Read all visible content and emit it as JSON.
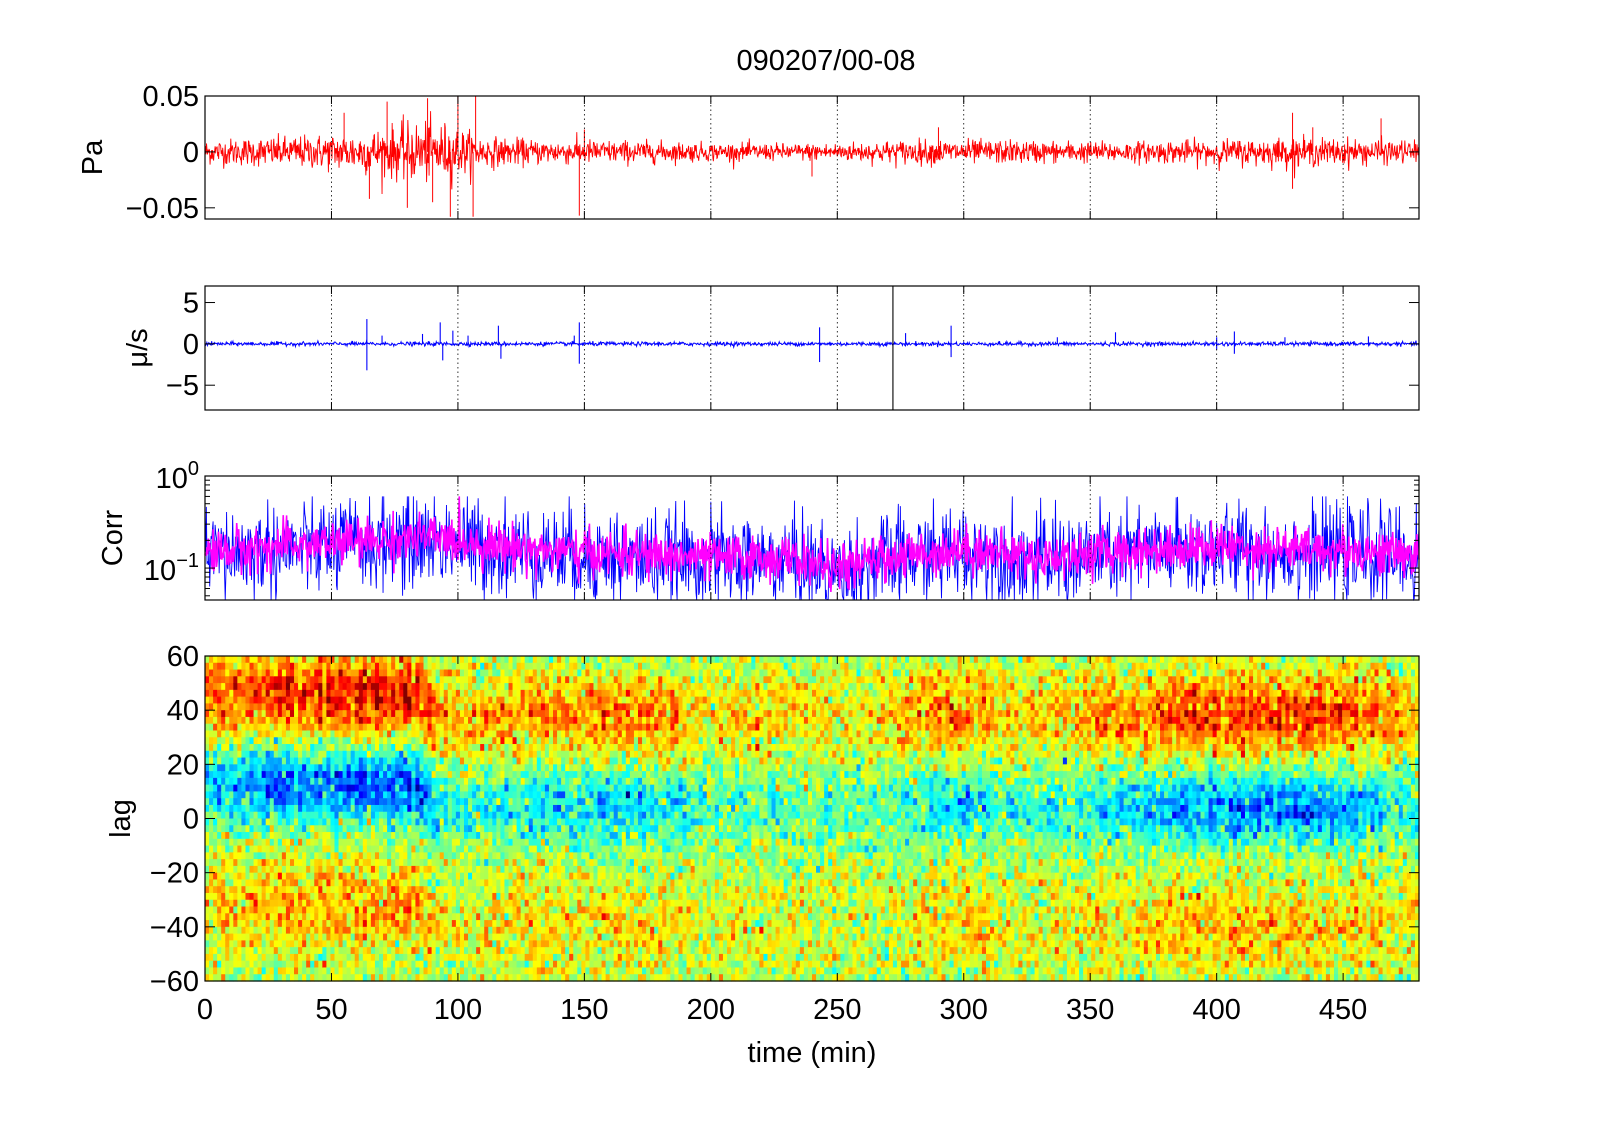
{
  "chart_data": [
    {
      "panel": "pressure",
      "type": "line",
      "title": "090207/00-08",
      "xlabel": "",
      "ylabel": "Pa",
      "xlim": [
        0,
        480
      ],
      "ylim": [
        -0.06,
        0.05
      ],
      "yticks": [
        0.05,
        0,
        -0.05
      ],
      "ytick_labels": [
        "0.05",
        "0",
        "−0.05"
      ],
      "grid": "x-dotted",
      "series_color": "#ff0000",
      "envelope": {
        "t": [
          0,
          20,
          40,
          60,
          75,
          85,
          95,
          110,
          130,
          150,
          170,
          200,
          230,
          250,
          280,
          300,
          330,
          360,
          400,
          430,
          450,
          480
        ],
        "amp": [
          0.012,
          0.014,
          0.016,
          0.02,
          0.026,
          0.03,
          0.028,
          0.015,
          0.012,
          0.012,
          0.011,
          0.009,
          0.008,
          0.009,
          0.012,
          0.012,
          0.011,
          0.01,
          0.012,
          0.014,
          0.013,
          0.011
        ]
      },
      "spikes": [
        {
          "t": 55,
          "v": 0.035
        },
        {
          "t": 65,
          "v": -0.042
        },
        {
          "t": 72,
          "v": 0.045
        },
        {
          "t": 80,
          "v": -0.05
        },
        {
          "t": 88,
          "v": 0.048
        },
        {
          "t": 90,
          "v": -0.045
        },
        {
          "t": 97,
          "v": -0.058
        },
        {
          "t": 100,
          "v": 0.05
        },
        {
          "t": 106,
          "v": -0.058
        },
        {
          "t": 107,
          "v": 0.05
        },
        {
          "t": 148,
          "v": -0.057
        },
        {
          "t": 150,
          "v": 0.02
        },
        {
          "t": 240,
          "v": -0.022
        },
        {
          "t": 290,
          "v": 0.022
        },
        {
          "t": 430,
          "v": 0.035
        },
        {
          "t": 430,
          "v": -0.033
        },
        {
          "t": 438,
          "v": 0.022
        },
        {
          "t": 465,
          "v": 0.03
        }
      ]
    },
    {
      "panel": "velocity",
      "type": "line",
      "xlabel": "",
      "ylabel": "μ/s",
      "xlim": [
        0,
        480
      ],
      "ylim": [
        -8,
        7
      ],
      "yticks": [
        5,
        0,
        -5
      ],
      "ytick_labels": [
        "5",
        "0",
        "−5"
      ],
      "grid": "x-dotted",
      "series_color": "#0000ff",
      "baseline_amp": 0.3,
      "spikes": [
        {
          "t": 64,
          "v": 3.0
        },
        {
          "t": 64,
          "v": -3.2
        },
        {
          "t": 70,
          "v": 1.0
        },
        {
          "t": 86,
          "v": 1.2
        },
        {
          "t": 93,
          "v": 2.6
        },
        {
          "t": 94,
          "v": -2.0
        },
        {
          "t": 98,
          "v": 1.6
        },
        {
          "t": 104,
          "v": 1.0
        },
        {
          "t": 116,
          "v": 2.2
        },
        {
          "t": 117,
          "v": -1.8
        },
        {
          "t": 146,
          "v": 1.0
        },
        {
          "t": 148,
          "v": 2.6
        },
        {
          "t": 148,
          "v": -2.4
        },
        {
          "t": 243,
          "v": 2.0
        },
        {
          "t": 243,
          "v": -2.2
        },
        {
          "t": 272,
          "v": 7
        },
        {
          "t": 272,
          "v": -8
        },
        {
          "t": 277,
          "v": 1.3
        },
        {
          "t": 295,
          "v": 2.2
        },
        {
          "t": 295,
          "v": -1.6
        },
        {
          "t": 337,
          "v": 0.8
        },
        {
          "t": 360,
          "v": 1.4
        },
        {
          "t": 400,
          "v": 0.8
        },
        {
          "t": 400,
          "v": -0.7
        },
        {
          "t": 407,
          "v": 1.5
        },
        {
          "t": 407,
          "v": -1.2
        },
        {
          "t": 427,
          "v": 0.8
        },
        {
          "t": 460,
          "v": 0.9
        }
      ]
    },
    {
      "panel": "correlation",
      "type": "line",
      "xlabel": "",
      "ylabel": "Corr",
      "yscale": "log",
      "xlim": [
        0,
        480
      ],
      "ylim": [
        0.045,
        1.0
      ],
      "yticks": [
        1.0,
        0.1
      ],
      "ytick_labels": [
        {
          "base": "10",
          "exp": "0"
        },
        {
          "base": "10",
          "exp": "−1"
        }
      ],
      "grid": "x-dotted",
      "series": [
        {
          "color": "#0000ff",
          "center": 0.13,
          "spread": 0.6
        },
        {
          "color": "#ff00ff",
          "center": 0.14,
          "spread": 0.28
        }
      ],
      "center_profile": {
        "t": [
          0,
          30,
          60,
          90,
          110,
          140,
          170,
          200,
          230,
          250,
          270,
          300,
          330,
          360,
          400,
          430,
          460,
          480
        ],
        "c": [
          0.14,
          0.16,
          0.18,
          0.2,
          0.17,
          0.14,
          0.13,
          0.12,
          0.12,
          0.09,
          0.12,
          0.15,
          0.12,
          0.14,
          0.16,
          0.15,
          0.14,
          0.13
        ]
      }
    },
    {
      "panel": "lag",
      "type": "heatmap",
      "xlabel": "time (min)",
      "ylabel": "lag",
      "xlim": [
        0,
        480
      ],
      "ylim": [
        -60,
        60
      ],
      "xticks": [
        0,
        50,
        100,
        150,
        200,
        250,
        300,
        350,
        400,
        450
      ],
      "xtick_labels": [
        "0",
        "50",
        "100",
        "150",
        "200",
        "250",
        "300",
        "350",
        "400",
        "450"
      ],
      "yticks": [
        60,
        40,
        20,
        0,
        -20,
        -40,
        -60
      ],
      "ytick_labels": [
        "60",
        "40",
        "20",
        "0",
        "−20",
        "−40",
        "−60"
      ],
      "colormap": "jet",
      "strength_profile": {
        "t": [
          0,
          30,
          60,
          85,
          95,
          110,
          140,
          170,
          200,
          230,
          260,
          280,
          300,
          320,
          350,
          380,
          410,
          440,
          460,
          480
        ],
        "s": [
          0.7,
          0.8,
          0.85,
          0.9,
          0.4,
          0.35,
          0.5,
          0.55,
          0.3,
          0.25,
          0.2,
          0.35,
          0.6,
          0.3,
          0.45,
          0.6,
          0.7,
          0.8,
          0.6,
          0.45
        ]
      },
      "band_shift_profile": {
        "t": [
          0,
          85,
          90,
          480
        ],
        "shift": [
          8,
          8,
          0,
          0
        ]
      }
    }
  ]
}
